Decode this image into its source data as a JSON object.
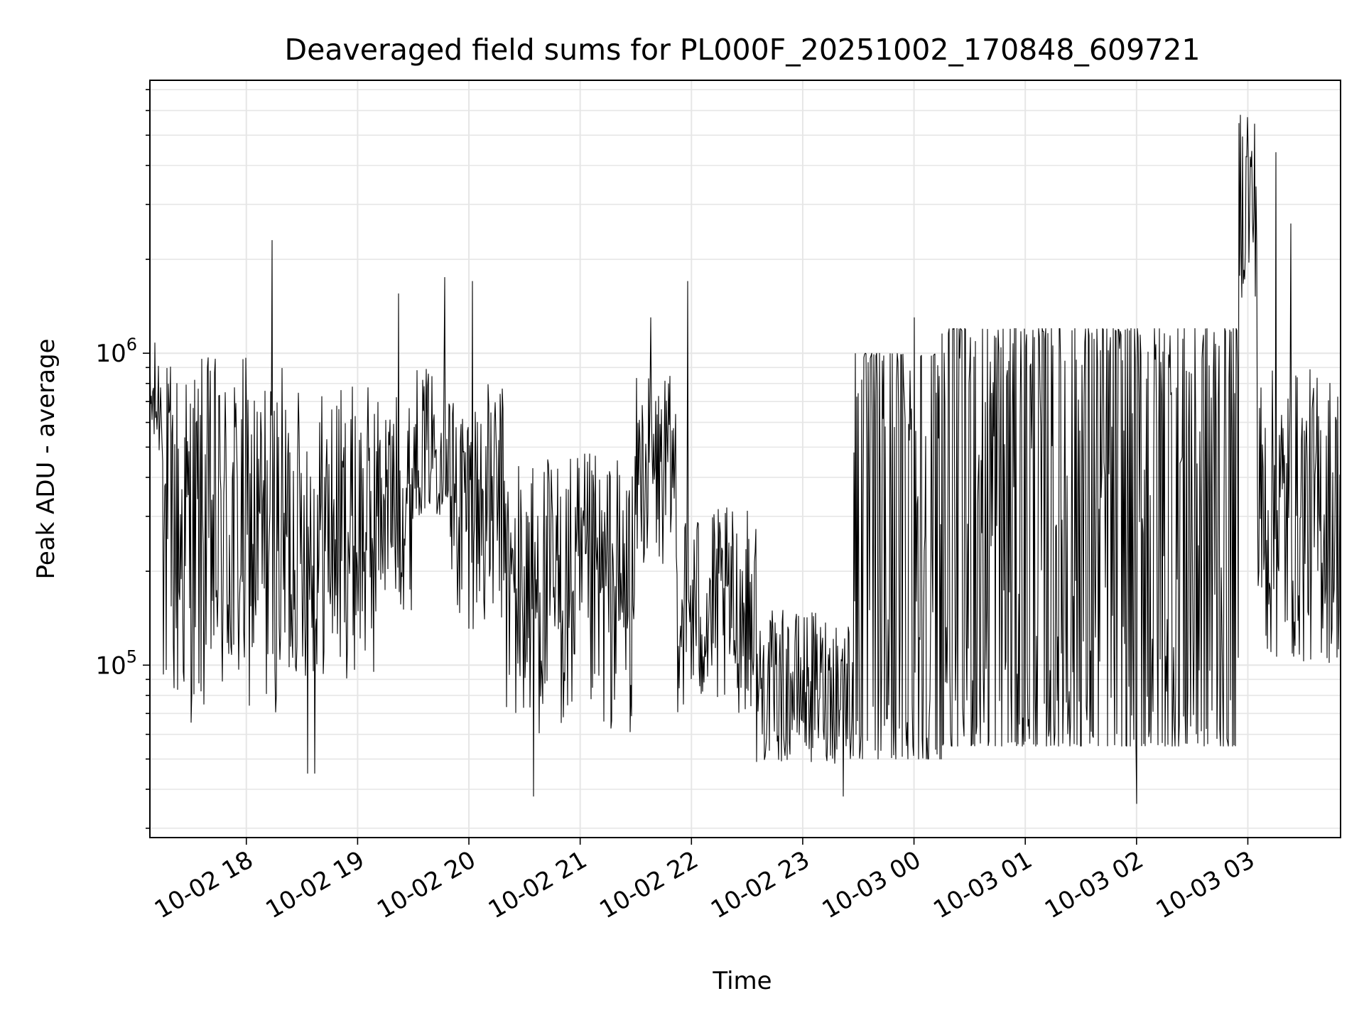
{
  "chart_data": {
    "type": "line",
    "title": "Deaveraged field sums for PL000F_20251002_170848_609721",
    "xlabel": "Time",
    "ylabel": "Peak ADU - average",
    "y_scale": "log",
    "grid": true,
    "ylim": [
      28000,
      7500000
    ],
    "xlim": [
      "2025-10-02T17:08:00",
      "2025-10-03T03:50:00"
    ],
    "x_ticks": [
      {
        "label": "10-02 18",
        "time": "2025-10-02T18:00:00"
      },
      {
        "label": "10-02 19",
        "time": "2025-10-02T19:00:00"
      },
      {
        "label": "10-02 20",
        "time": "2025-10-02T20:00:00"
      },
      {
        "label": "10-02 21",
        "time": "2025-10-02T21:00:00"
      },
      {
        "label": "10-02 22",
        "time": "2025-10-02T22:00:00"
      },
      {
        "label": "10-02 23",
        "time": "2025-10-02T23:00:00"
      },
      {
        "label": "10-03 00",
        "time": "2025-10-03T00:00:00"
      },
      {
        "label": "10-03 01",
        "time": "2025-10-03T01:00:00"
      },
      {
        "label": "10-03 02",
        "time": "2025-10-03T02:00:00"
      },
      {
        "label": "10-03 03",
        "time": "2025-10-03T03:00:00"
      }
    ],
    "y_ticks": [
      {
        "base": "10",
        "exp": "5",
        "value": 100000
      },
      {
        "base": "10",
        "exp": "6",
        "value": 1000000
      }
    ],
    "line_color": "#000000",
    "grid_color": "#e6e6e6",
    "series": [
      {
        "segments": [
          {
            "start": "2025-10-02T17:08:00",
            "end": "2025-10-02T17:15:00",
            "mode": "lo",
            "lo": 430000,
            "hi": 1100000
          },
          {
            "start": "2025-10-02T17:15:00",
            "end": "2025-10-02T18:00:00",
            "mode": "lo",
            "lo": 65000,
            "hi": 1000000
          },
          {
            "start": "2025-10-02T18:00:00",
            "end": "2025-10-02T18:25:00",
            "mode": "lo",
            "lo": 70000,
            "hi": 900000
          },
          {
            "start": "2025-10-02T18:25:00",
            "end": "2025-10-02T19:10:00",
            "mode": "lo",
            "lo": 90000,
            "hi": 800000
          },
          {
            "start": "2025-10-02T19:10:00",
            "end": "2025-10-02T19:30:00",
            "mode": "lo",
            "lo": 150000,
            "hi": 750000
          },
          {
            "start": "2025-10-02T19:30:00",
            "end": "2025-10-02T19:50:00",
            "mode": "lo",
            "lo": 300000,
            "hi": 900000
          },
          {
            "start": "2025-10-02T19:50:00",
            "end": "2025-10-02T20:20:00",
            "mode": "lo",
            "lo": 130000,
            "hi": 800000
          },
          {
            "start": "2025-10-02T20:20:00",
            "end": "2025-10-02T21:30:00",
            "mode": "lo",
            "lo": 60000,
            "hi": 480000
          },
          {
            "start": "2025-10-02T21:30:00",
            "end": "2025-10-02T21:52:00",
            "mode": "lo",
            "lo": 200000,
            "hi": 850000
          },
          {
            "start": "2025-10-02T21:52:00",
            "end": "2025-10-02T22:35:00",
            "mode": "lo",
            "lo": 70000,
            "hi": 320000
          },
          {
            "start": "2025-10-02T22:35:00",
            "end": "2025-10-02T23:25:00",
            "mode": "lo",
            "lo": 48000,
            "hi": 150000
          },
          {
            "start": "2025-10-02T23:25:00",
            "end": "2025-10-03T00:15:00",
            "mode": "hi",
            "lo": 50000,
            "hi": 1000000
          },
          {
            "start": "2025-10-03T00:15:00",
            "end": "2025-10-03T02:55:00",
            "mode": "hi",
            "lo": 55000,
            "hi": 1200000
          },
          {
            "start": "2025-10-03T02:55:00",
            "end": "2025-10-03T03:05:00",
            "mode": "lo",
            "lo": 1500000,
            "hi": 6000000
          },
          {
            "start": "2025-10-03T03:05:00",
            "end": "2025-10-03T03:50:00",
            "mode": "lo",
            "lo": 100000,
            "hi": 900000
          }
        ],
        "spikes": [
          {
            "time": "2025-10-02T18:14:00",
            "value": 2300000
          },
          {
            "time": "2025-10-02T18:33:00",
            "value": 45000
          },
          {
            "time": "2025-10-02T18:37:00",
            "value": 45000
          },
          {
            "time": "2025-10-02T19:22:00",
            "value": 1550000
          },
          {
            "time": "2025-10-02T19:47:00",
            "value": 1750000
          },
          {
            "time": "2025-10-02T20:02:00",
            "value": 1700000
          },
          {
            "time": "2025-10-02T20:35:00",
            "value": 38000
          },
          {
            "time": "2025-10-02T21:38:00",
            "value": 1300000
          },
          {
            "time": "2025-10-02T21:58:00",
            "value": 1700000
          },
          {
            "time": "2025-10-02T23:22:00",
            "value": 38000
          },
          {
            "time": "2025-10-03T00:00:00",
            "value": 1300000
          },
          {
            "time": "2025-10-03T02:00:00",
            "value": 36000
          },
          {
            "time": "2025-10-03T02:56:00",
            "value": 5800000
          },
          {
            "time": "2025-10-03T03:00:00",
            "value": 5700000
          },
          {
            "time": "2025-10-03T03:15:00",
            "value": 4400000
          },
          {
            "time": "2025-10-03T03:23:00",
            "value": 2600000
          }
        ]
      }
    ]
  }
}
